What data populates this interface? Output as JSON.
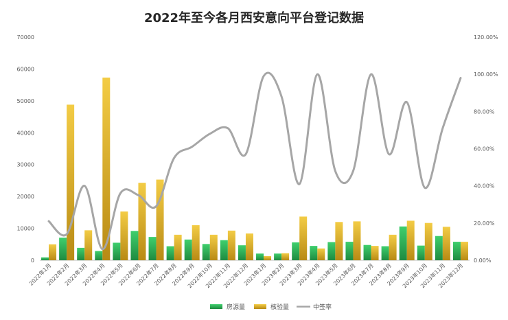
{
  "chart_data": {
    "type": "bar",
    "title": "2022年至今各月西安意向平台登记数据",
    "categories": [
      "2022年1月",
      "2022年2月",
      "2022年3月",
      "2022年4月",
      "2022年5月",
      "2022年6月",
      "2022年7月",
      "2022年8月",
      "2022年9月",
      "2022年10月",
      "2022年11月",
      "2022年12月",
      "2023年1月",
      "2023年2月",
      "2023年3月",
      "2023年4月",
      "2023年5月",
      "2023年6月",
      "2023年7月",
      "2023年8月",
      "2023年9月",
      "2023年10月",
      "2023年11月",
      "2023年12月"
    ],
    "series": [
      {
        "name": "房源量",
        "axis": "left",
        "color": "#2eb85c",
        "values": [
          900,
          7100,
          3900,
          2900,
          5500,
          9200,
          7300,
          4400,
          6500,
          5100,
          6300,
          4700,
          2100,
          2100,
          5600,
          4500,
          5700,
          5800,
          4800,
          4400,
          10600,
          4600,
          7600,
          5800
        ]
      },
      {
        "name": "核验量",
        "axis": "left",
        "color": "#e8b92e",
        "values": [
          5000,
          48800,
          9400,
          57300,
          15300,
          24300,
          25300,
          8000,
          11000,
          8000,
          9300,
          8400,
          1300,
          2200,
          13700,
          3700,
          12000,
          12200,
          4500,
          8000,
          12400,
          11700,
          10500,
          5800
        ]
      },
      {
        "name": "中签率",
        "axis": "right",
        "type": "line",
        "color": "#a6a6a6",
        "values": [
          0.21,
          0.14,
          0.4,
          0.06,
          0.36,
          0.35,
          0.29,
          0.55,
          0.61,
          0.68,
          0.71,
          0.57,
          0.99,
          0.88,
          0.41,
          1.0,
          0.48,
          0.48,
          1.0,
          0.57,
          0.85,
          0.39,
          0.71,
          0.98
        ]
      }
    ],
    "y_left": {
      "min": 0,
      "max": 70000,
      "ticks": [
        0,
        10000,
        20000,
        30000,
        40000,
        50000,
        60000,
        70000
      ]
    },
    "y_right": {
      "min": 0,
      "max": 1.2,
      "ticks": [
        "0.00%",
        "20.00%",
        "40.00%",
        "60.00%",
        "80.00%",
        "100.00%",
        "120.00%"
      ]
    },
    "legend_position": "bottom",
    "grid": false
  }
}
